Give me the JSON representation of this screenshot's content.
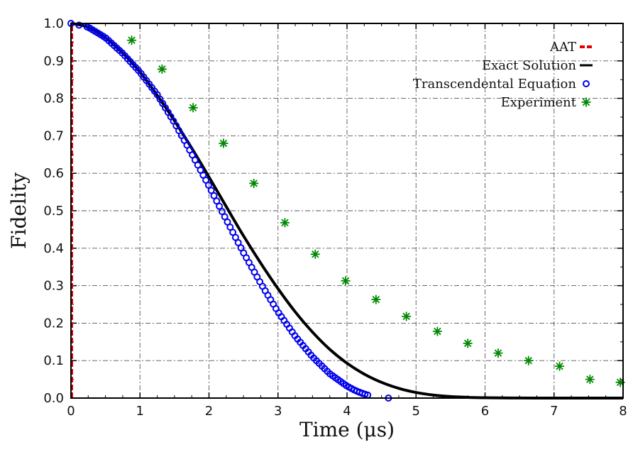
{
  "chart_data": {
    "type": "line",
    "xlabel": "Time (μs)",
    "ylabel": "Fidelity",
    "xlim": [
      0,
      8
    ],
    "ylim": [
      0,
      1
    ],
    "grid": true,
    "legend_position": "top-right",
    "x_ticks": [
      "0",
      "1",
      "2",
      "3",
      "4",
      "5",
      "6",
      "7",
      "8"
    ],
    "y_ticks": [
      "0.0",
      "0.1",
      "0.2",
      "0.3",
      "0.4",
      "0.5",
      "0.6",
      "0.7",
      "0.8",
      "0.9",
      "1.0"
    ],
    "series": [
      {
        "name": "AAT",
        "style": "red-dashed-line",
        "color": "#e00000",
        "x": [
          0.0,
          0.0
        ],
        "y": [
          0.0,
          1.0
        ]
      },
      {
        "name": "Exact Solution",
        "style": "black-solid-line",
        "color": "#000000",
        "x": [
          0.0,
          0.25,
          0.5,
          0.75,
          1.0,
          1.25,
          1.5,
          1.75,
          2.0,
          2.25,
          2.5,
          2.75,
          3.0,
          3.25,
          3.5,
          3.75,
          4.0,
          4.25,
          4.5,
          4.75,
          5.0,
          5.25,
          5.5,
          5.75,
          6.0,
          6.25,
          6.5,
          6.75,
          7.0,
          7.5,
          8.0
        ],
        "y": [
          1.0,
          0.99,
          0.962,
          0.921,
          0.87,
          0.808,
          0.74,
          0.667,
          0.59,
          0.511,
          0.433,
          0.36,
          0.292,
          0.23,
          0.176,
          0.13,
          0.093,
          0.064,
          0.042,
          0.026,
          0.015,
          0.008,
          0.004,
          0.002,
          0.001,
          0.0005,
          0.0002,
          0.0001,
          0.0,
          0.0,
          0.0
        ]
      },
      {
        "name": "Transcendental Equation",
        "style": "blue-circles",
        "color": "#0000ee",
        "x": [
          0.0,
          0.25,
          0.5,
          0.75,
          1.0,
          1.25,
          1.5,
          1.75,
          2.0,
          2.25,
          2.5,
          2.75,
          3.0,
          3.25,
          3.5,
          3.75,
          4.0,
          4.1,
          4.2,
          4.3,
          4.6
        ],
        "y": [
          1.0,
          0.99,
          0.962,
          0.92,
          0.87,
          0.81,
          0.735,
          0.652,
          0.566,
          0.476,
          0.388,
          0.306,
          0.23,
          0.165,
          0.11,
          0.065,
          0.032,
          0.022,
          0.014,
          0.008,
          0.0
        ]
      },
      {
        "name": "Experiment",
        "style": "green-stars",
        "color": "#008800",
        "x": [
          0.88,
          1.32,
          1.77,
          2.21,
          2.65,
          3.1,
          3.54,
          3.98,
          4.42,
          4.86,
          5.31,
          5.75,
          6.19,
          6.63,
          7.08,
          7.52,
          7.96
        ],
        "y": [
          0.955,
          0.878,
          0.775,
          0.68,
          0.573,
          0.468,
          0.384,
          0.313,
          0.263,
          0.218,
          0.178,
          0.146,
          0.12,
          0.1,
          0.085,
          0.05,
          0.042
        ]
      }
    ]
  }
}
